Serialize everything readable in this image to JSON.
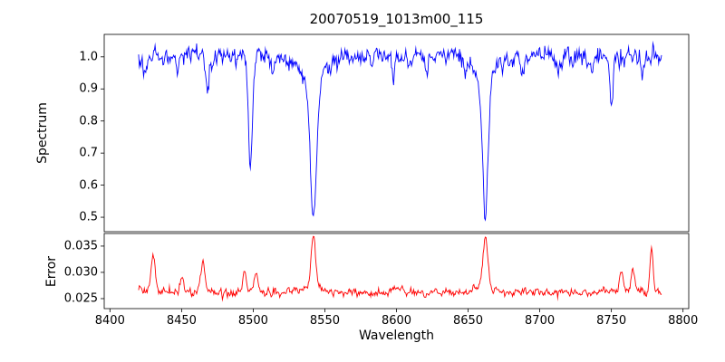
{
  "chart_data": {
    "type": "line",
    "title": "20070519_1013m00_115",
    "xlabel": "Wavelength",
    "grid": false,
    "legend": false,
    "xlim": [
      8396,
      8804
    ],
    "xticks": [
      8400,
      8450,
      8500,
      8550,
      8600,
      8650,
      8700,
      8750,
      8800
    ],
    "x_range": [
      8420,
      8785
    ],
    "x_step": 0.5,
    "subplots": [
      {
        "name": "spectrum",
        "ylabel": "Spectrum",
        "ylim": [
          0.455,
          1.07
        ],
        "yticks": [
          0.5,
          0.6,
          0.7,
          0.8,
          0.9,
          1.0
        ],
        "ytick_labels": [
          "0.5",
          "0.6",
          "0.7",
          "0.8",
          "0.9",
          "1.0"
        ],
        "color": "#0000ff",
        "baseline": 1.0,
        "noise_sigma": 0.013,
        "noise_seed": 7,
        "features": [
          {
            "center": 8424,
            "amplitude": -0.06,
            "width": 1.0
          },
          {
            "center": 8447,
            "amplitude": -0.05,
            "width": 1.0
          },
          {
            "center": 8468,
            "amplitude": -0.1,
            "width": 1.2
          },
          {
            "center": 8498,
            "amplitude": -0.33,
            "width": 1.4
          },
          {
            "center": 8514,
            "amplitude": -0.05,
            "width": 1.0
          },
          {
            "center": 8542,
            "amplitude": -0.43,
            "width": 2.2
          },
          {
            "center": 8542,
            "amplitude": -0.07,
            "width": 9.0
          },
          {
            "center": 8583,
            "amplitude": -0.06,
            "width": 1.0
          },
          {
            "center": 8598,
            "amplitude": -0.07,
            "width": 1.0
          },
          {
            "center": 8621,
            "amplitude": -0.05,
            "width": 1.0
          },
          {
            "center": 8648,
            "amplitude": -0.04,
            "width": 1.0
          },
          {
            "center": 8662,
            "amplitude": -0.43,
            "width": 2.0
          },
          {
            "center": 8662,
            "amplitude": -0.06,
            "width": 8.0
          },
          {
            "center": 8688,
            "amplitude": -0.05,
            "width": 1.0
          },
          {
            "center": 8713,
            "amplitude": -0.04,
            "width": 1.0
          },
          {
            "center": 8736,
            "amplitude": -0.05,
            "width": 1.0
          },
          {
            "center": 8750,
            "amplitude": -0.16,
            "width": 1.2
          },
          {
            "center": 8772,
            "amplitude": -0.07,
            "width": 1.0
          }
        ]
      },
      {
        "name": "error",
        "ylabel": "Error",
        "ylim": [
          0.0231,
          0.0374
        ],
        "yticks": [
          0.025,
          0.03,
          0.035
        ],
        "ytick_labels": [
          "0.025",
          "0.030",
          "0.035"
        ],
        "color": "#ff0000",
        "baseline": 0.0262,
        "noise_sigma": 0.00035,
        "noise_seed": 11,
        "features": [
          {
            "center": 8430,
            "amplitude": 0.0075,
            "width": 1.4
          },
          {
            "center": 8450,
            "amplitude": 0.0028,
            "width": 1.2
          },
          {
            "center": 8465,
            "amplitude": 0.006,
            "width": 1.3
          },
          {
            "center": 8494,
            "amplitude": 0.004,
            "width": 1.2
          },
          {
            "center": 8502,
            "amplitude": 0.004,
            "width": 1.2
          },
          {
            "center": 8542,
            "amplitude": 0.0095,
            "width": 1.6
          },
          {
            "center": 8542,
            "amplitude": 0.001,
            "width": 7.0
          },
          {
            "center": 8600,
            "amplitude": 0.0008,
            "width": 3.0
          },
          {
            "center": 8662,
            "amplitude": 0.009,
            "width": 1.6
          },
          {
            "center": 8662,
            "amplitude": 0.001,
            "width": 7.0
          },
          {
            "center": 8757,
            "amplitude": 0.004,
            "width": 1.2
          },
          {
            "center": 8765,
            "amplitude": 0.0045,
            "width": 1.2
          },
          {
            "center": 8778,
            "amplitude": 0.009,
            "width": 1.0
          }
        ]
      }
    ]
  }
}
